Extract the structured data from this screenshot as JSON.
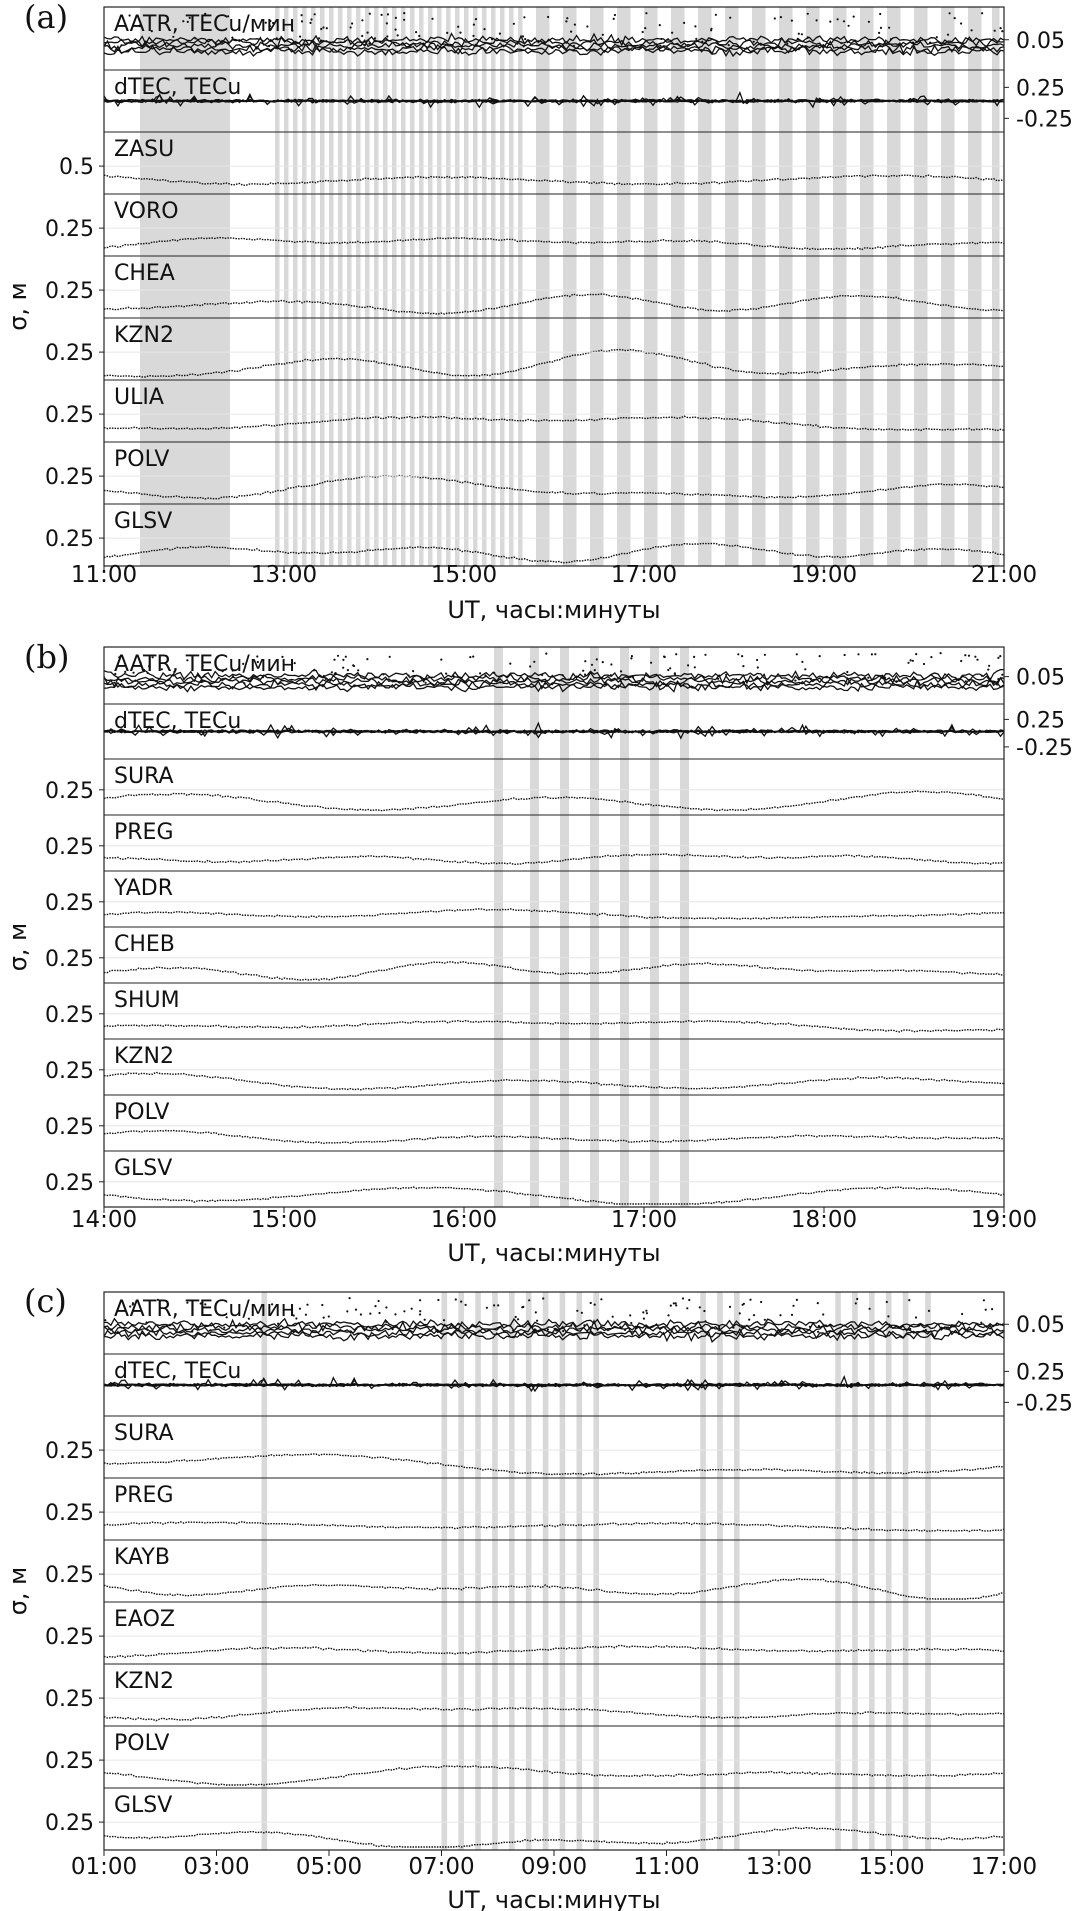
{
  "figure": {
    "background": "#ffffff",
    "trace_color": "#111111",
    "band_color": "#d9d9d9"
  },
  "chart_data": [
    {
      "type": "line",
      "panel_label": "(a)",
      "xlabel": "UT, часы:минуты",
      "ylabel": "σ, м",
      "x_range_hours": [
        11,
        21
      ],
      "x_ticks": [
        "11:00",
        "13:00",
        "15:00",
        "17:00",
        "19:00",
        "21:00"
      ],
      "x_tick_hours": [
        11,
        13,
        15,
        17,
        19,
        21
      ],
      "shaded_intervals_ut": [
        [
          "11:24",
          "12:24"
        ],
        [
          "12:54",
          "12:57"
        ],
        [
          "13:00",
          "13:03"
        ],
        [
          "13:06",
          "13:09"
        ],
        [
          "13:12",
          "13:15"
        ],
        [
          "13:18",
          "13:21"
        ],
        [
          "13:24",
          "13:27"
        ],
        [
          "13:30",
          "13:33"
        ],
        [
          "13:36",
          "13:39"
        ],
        [
          "13:42",
          "13:45"
        ],
        [
          "13:48",
          "13:51"
        ],
        [
          "13:54",
          "13:57"
        ],
        [
          "14:00",
          "14:03"
        ],
        [
          "14:06",
          "14:09"
        ],
        [
          "14:12",
          "14:15"
        ],
        [
          "14:18",
          "14:21"
        ],
        [
          "14:24",
          "14:27"
        ],
        [
          "14:30",
          "14:33"
        ],
        [
          "14:36",
          "14:39"
        ],
        [
          "14:42",
          "14:45"
        ],
        [
          "14:48",
          "14:51"
        ],
        [
          "14:54",
          "14:57"
        ],
        [
          "15:00",
          "15:03"
        ],
        [
          "15:06",
          "15:09"
        ],
        [
          "15:12",
          "15:15"
        ],
        [
          "15:18",
          "15:21"
        ],
        [
          "15:24",
          "15:27"
        ],
        [
          "15:30",
          "15:33"
        ],
        [
          "15:36",
          "15:39"
        ],
        [
          "15:48",
          "15:57"
        ],
        [
          "16:06",
          "16:15"
        ],
        [
          "16:24",
          "16:33"
        ],
        [
          "16:42",
          "16:51"
        ],
        [
          "17:00",
          "17:09"
        ],
        [
          "17:18",
          "17:27"
        ],
        [
          "17:36",
          "17:45"
        ],
        [
          "17:54",
          "18:03"
        ],
        [
          "18:12",
          "18:21"
        ],
        [
          "18:30",
          "18:39"
        ],
        [
          "18:48",
          "18:57"
        ],
        [
          "19:06",
          "19:15"
        ],
        [
          "19:24",
          "19:33"
        ],
        [
          "19:42",
          "19:51"
        ],
        [
          "20:00",
          "20:09"
        ],
        [
          "20:18",
          "20:27"
        ],
        [
          "20:36",
          "20:45"
        ],
        [
          "20:52",
          "20:57"
        ]
      ],
      "rows": [
        {
          "name": "AATR, TECu/мин",
          "right_ticks": [
            "0.05"
          ],
          "kind": "aatr"
        },
        {
          "name": "dTEC, TECu",
          "right_ticks": [
            "0.25",
            "-0.25"
          ],
          "kind": "dtec"
        },
        {
          "name": "ZASU",
          "left_tick": "0.5",
          "kind": "sigma"
        },
        {
          "name": "VORO",
          "left_tick": "0.25",
          "kind": "sigma"
        },
        {
          "name": "CHEA",
          "left_tick": "0.25",
          "kind": "sigma"
        },
        {
          "name": "KZN2",
          "left_tick": "0.25",
          "kind": "sigma"
        },
        {
          "name": "ULIA",
          "left_tick": "0.25",
          "kind": "sigma"
        },
        {
          "name": "POLV",
          "left_tick": "0.25",
          "kind": "sigma"
        },
        {
          "name": "GLSV",
          "left_tick": "0.25",
          "kind": "sigma"
        }
      ]
    },
    {
      "type": "line",
      "panel_label": "(b)",
      "xlabel": "UT, часы:минуты",
      "ylabel": "σ, м",
      "x_range_hours": [
        14,
        19
      ],
      "x_ticks": [
        "14:00",
        "15:00",
        "16:00",
        "17:00",
        "18:00",
        "19:00"
      ],
      "x_tick_hours": [
        14,
        15,
        16,
        17,
        18,
        19
      ],
      "shaded_intervals_ut": [
        [
          "16:10",
          "16:13"
        ],
        [
          "16:22",
          "16:25"
        ],
        [
          "16:32",
          "16:35"
        ],
        [
          "16:42",
          "16:45"
        ],
        [
          "16:52",
          "16:55"
        ],
        [
          "17:02",
          "17:05"
        ],
        [
          "17:12",
          "17:15"
        ]
      ],
      "rows": [
        {
          "name": "AATR, TECu/мин",
          "right_ticks": [
            "0.05"
          ],
          "kind": "aatr"
        },
        {
          "name": "dTEC, TECu",
          "right_ticks": [
            "0.25",
            "-0.25"
          ],
          "kind": "dtec"
        },
        {
          "name": "SURA",
          "left_tick": "0.25",
          "kind": "sigma"
        },
        {
          "name": "PREG",
          "left_tick": "0.25",
          "kind": "sigma"
        },
        {
          "name": "YADR",
          "left_tick": "0.25",
          "kind": "sigma"
        },
        {
          "name": "CHEB",
          "left_tick": "0.25",
          "kind": "sigma"
        },
        {
          "name": "SHUM",
          "left_tick": "0.25",
          "kind": "sigma"
        },
        {
          "name": "KZN2",
          "left_tick": "0.25",
          "kind": "sigma"
        },
        {
          "name": "POLV",
          "left_tick": "0.25",
          "kind": "sigma"
        },
        {
          "name": "GLSV",
          "left_tick": "0.25",
          "kind": "sigma"
        }
      ]
    },
    {
      "type": "line",
      "panel_label": "(c)",
      "xlabel": "UT, часы:минуты",
      "ylabel": "σ, м",
      "x_range_hours": [
        1,
        17
      ],
      "x_ticks": [
        "01:00",
        "03:00",
        "05:00",
        "07:00",
        "09:00",
        "11:00",
        "13:00",
        "15:00",
        "17:00"
      ],
      "x_tick_hours": [
        1,
        3,
        5,
        7,
        9,
        11,
        13,
        15,
        17
      ],
      "shaded_intervals_ut": [
        [
          "03:48",
          "03:54"
        ],
        [
          "07:00",
          "07:06"
        ],
        [
          "07:18",
          "07:24"
        ],
        [
          "07:36",
          "07:42"
        ],
        [
          "07:54",
          "08:00"
        ],
        [
          "08:12",
          "08:18"
        ],
        [
          "08:30",
          "08:36"
        ],
        [
          "08:48",
          "08:54"
        ],
        [
          "09:06",
          "09:12"
        ],
        [
          "09:24",
          "09:30"
        ],
        [
          "09:42",
          "09:48"
        ],
        [
          "11:36",
          "11:42"
        ],
        [
          "11:54",
          "12:00"
        ],
        [
          "12:12",
          "12:18"
        ],
        [
          "14:00",
          "14:06"
        ],
        [
          "14:18",
          "14:24"
        ],
        [
          "14:36",
          "14:42"
        ],
        [
          "14:54",
          "15:00"
        ],
        [
          "15:12",
          "15:18"
        ],
        [
          "15:36",
          "15:42"
        ]
      ],
      "rows": [
        {
          "name": "AATR, TECu/мин",
          "right_ticks": [
            "0.05"
          ],
          "kind": "aatr"
        },
        {
          "name": "dTEC, TECu",
          "right_ticks": [
            "0.25",
            "-0.25"
          ],
          "kind": "dtec"
        },
        {
          "name": "SURA",
          "left_tick": "0.25",
          "kind": "sigma"
        },
        {
          "name": "PREG",
          "left_tick": "0.25",
          "kind": "sigma"
        },
        {
          "name": "KAYB",
          "left_tick": "0.25",
          "kind": "sigma"
        },
        {
          "name": "EAOZ",
          "left_tick": "0.25",
          "kind": "sigma"
        },
        {
          "name": "KZN2",
          "left_tick": "0.25",
          "kind": "sigma"
        },
        {
          "name": "POLV",
          "left_tick": "0.25",
          "kind": "sigma"
        },
        {
          "name": "GLSV",
          "left_tick": "0.25",
          "kind": "sigma"
        }
      ]
    }
  ]
}
